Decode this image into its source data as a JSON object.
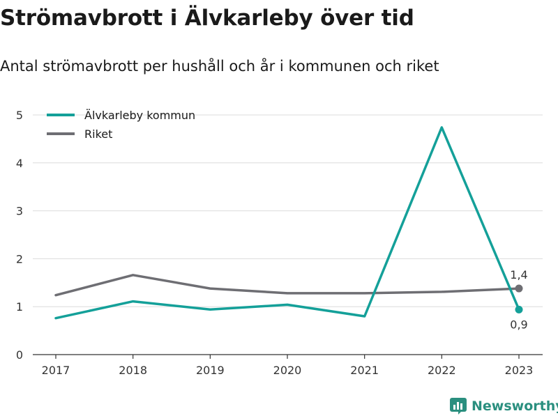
{
  "title": "Strömavbrott i Älvkarleby över tid",
  "subtitle": "Antal strömavbrott per hushåll och år i kommunen och riket",
  "brand": "Newsworthy",
  "chart_data": {
    "type": "line",
    "x": [
      "2017",
      "2018",
      "2019",
      "2020",
      "2021",
      "2022",
      "2023"
    ],
    "ylim": [
      0,
      5
    ],
    "yticks": [
      0,
      1,
      2,
      3,
      4,
      5
    ],
    "grid": true,
    "legend_position": "top-left",
    "series": [
      {
        "name": "Älvkarleby kommun",
        "color": "#14a099",
        "values": [
          0.76,
          1.11,
          0.94,
          1.04,
          0.8,
          4.74,
          0.94
        ],
        "end_label": "0,9",
        "end_label_position": "below"
      },
      {
        "name": "Riket",
        "color": "#6e6e73",
        "values": [
          1.24,
          1.66,
          1.38,
          1.28,
          1.28,
          1.31,
          1.38
        ],
        "end_label": "1,4",
        "end_label_position": "above"
      }
    ]
  }
}
